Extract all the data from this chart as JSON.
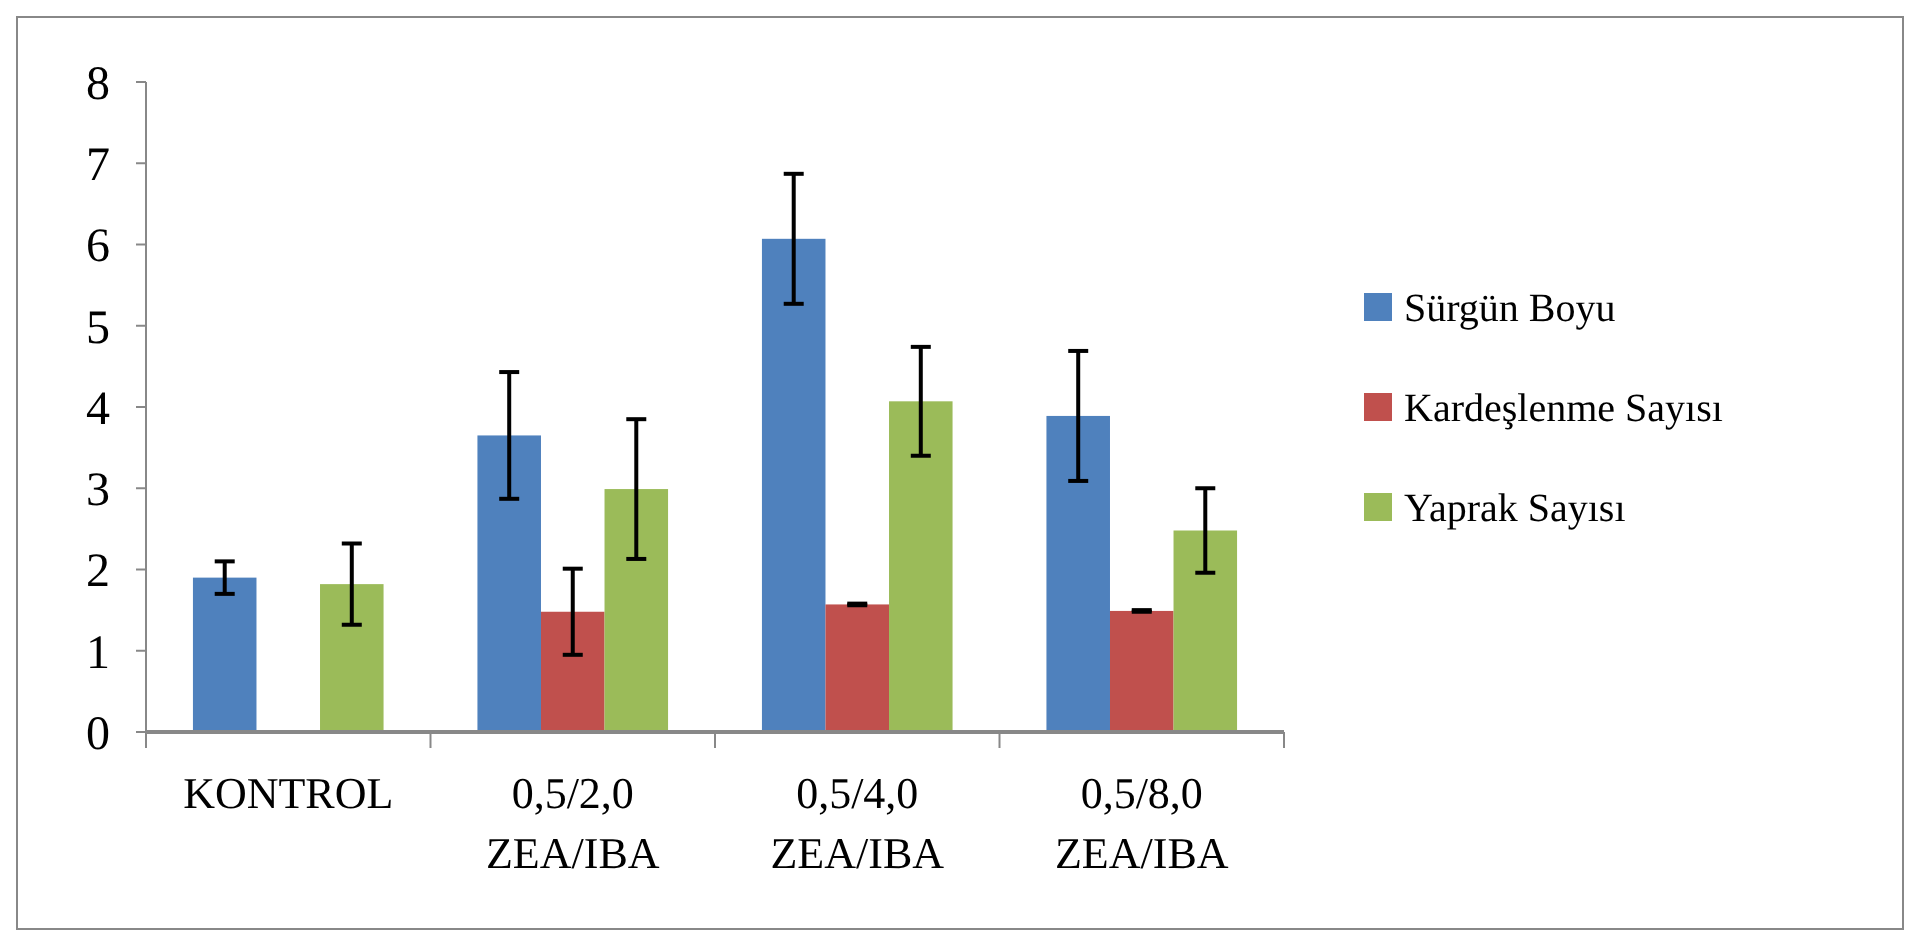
{
  "chart_data": {
    "type": "bar",
    "categories": [
      "KONTROL",
      "0,5/2,0\nZEA/IBA",
      "0,5/4,0\nZEA/IBA",
      "0,5/8,0\nZEA/IBA"
    ],
    "series": [
      {
        "name": "Sürgün Boyu",
        "color": "#4f81bd",
        "values": [
          1.9,
          3.65,
          6.07,
          3.89
        ],
        "errors": [
          0.2,
          0.78,
          0.8,
          0.8
        ]
      },
      {
        "name": "Kardeşlenme Sayısı",
        "color": "#c0504d",
        "values": [
          0,
          1.48,
          1.57,
          1.49
        ],
        "errors": [
          null,
          0.53,
          0.01,
          0.01
        ]
      },
      {
        "name": "Yaprak Sayısı",
        "color": "#9bbb59",
        "values": [
          1.82,
          2.99,
          4.07,
          2.48
        ],
        "errors": [
          0.5,
          0.86,
          0.67,
          0.52
        ]
      }
    ],
    "ylim": [
      0,
      8
    ],
    "yticks": [
      0,
      1,
      2,
      3,
      4,
      5,
      6,
      7,
      8
    ],
    "grid": false,
    "legend": "right"
  }
}
